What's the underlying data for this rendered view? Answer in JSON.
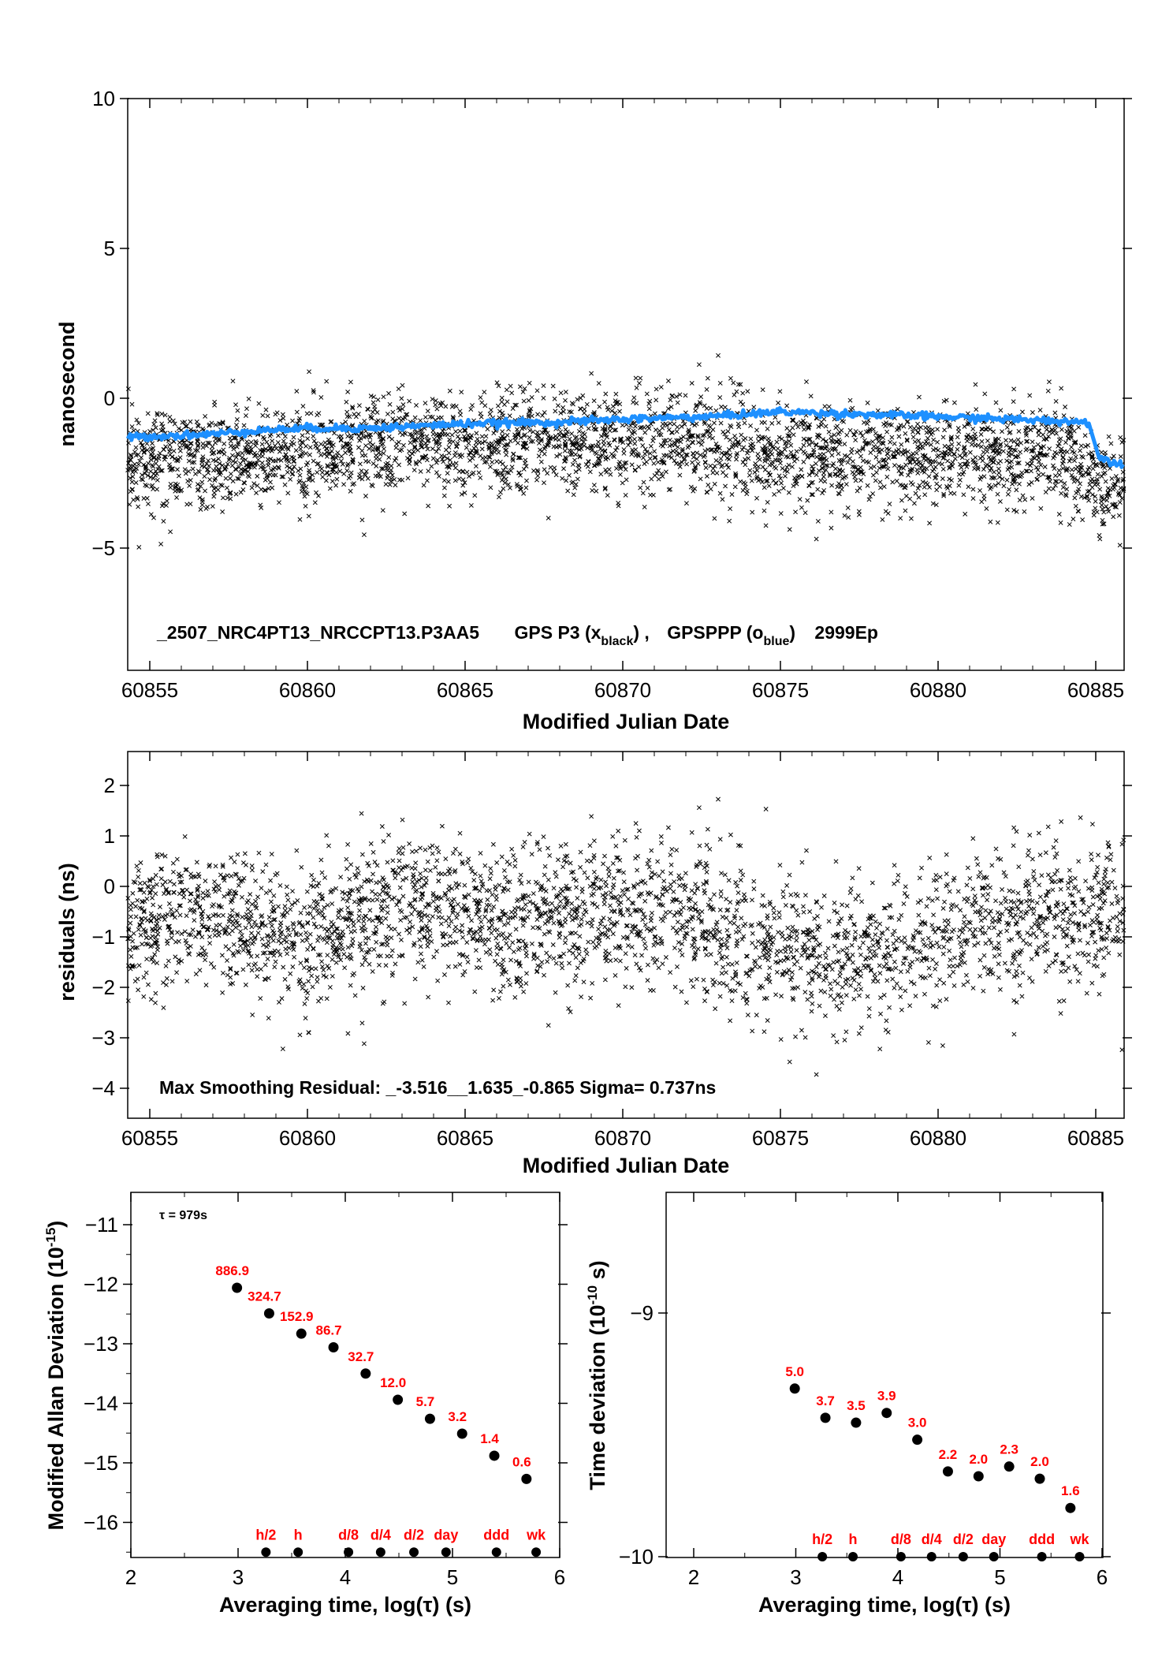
{
  "colors": {
    "x_series": "#000000",
    "o_series": "#1e90ff",
    "labels": "#ff0000"
  },
  "chart_data": [
    {
      "type": "scatter",
      "ylabel": "nanosecond",
      "xlabel": "Modified Julian Date",
      "xlim": [
        60854.3,
        60885.9
      ],
      "ylim": [
        -9,
        10
      ],
      "yticks": [
        "10",
        "5",
        "0",
        "−5"
      ],
      "xticks": [
        "60855",
        "60860",
        "60865",
        "60870",
        "60875",
        "60880",
        "60885"
      ],
      "annotation": {
        "id": "_2507_NRC4PT13_NRCCPT13.P3AA5",
        "gps": "GPS P3 (x",
        "gps_sub": "black",
        "gps_end": ") ,",
        "ppp": "GPSPPP (o",
        "ppp_sub": "blue",
        "ppp_end": ")",
        "ep": "2999Ep"
      },
      "series": [
        {
          "symbol": "x",
          "color": "#000000",
          "trend": [
            [
              60854.3,
              -2.0
            ],
            [
              60857,
              -2.1
            ],
            [
              60860,
              -1.8
            ],
            [
              60863,
              -1.6
            ],
            [
              60866,
              -1.5
            ],
            [
              60869,
              -1.4
            ],
            [
              60872,
              -1.5
            ],
            [
              60875,
              -1.8
            ],
            [
              60878,
              -2.0
            ],
            [
              60881,
              -1.9
            ],
            [
              60884,
              -1.9
            ],
            [
              60885,
              -2.7
            ],
            [
              60885.9,
              -3.2
            ]
          ],
          "spread": 0.85
        },
        {
          "symbol": "o",
          "color": "#1e90ff",
          "line": [
            [
              60854.3,
              -1.3
            ],
            [
              60857,
              -1.2
            ],
            [
              60858,
              -1.1
            ],
            [
              60860,
              -1.0
            ],
            [
              60862,
              -1.0
            ],
            [
              60865,
              -0.85
            ],
            [
              60868,
              -0.8
            ],
            [
              60870,
              -0.7
            ],
            [
              60873,
              -0.6
            ],
            [
              60875,
              -0.45
            ],
            [
              60878,
              -0.55
            ],
            [
              60881,
              -0.65
            ],
            [
              60884.8,
              -0.8
            ],
            [
              60885.1,
              -2.0
            ],
            [
              60885.9,
              -2.2
            ]
          ]
        }
      ]
    },
    {
      "type": "scatter",
      "ylabel": "residuals (ns)",
      "xlabel": "Modified Julian Date",
      "xlim": [
        60854.3,
        60885.9
      ],
      "ylim": [
        -4.5,
        2.6
      ],
      "yticks": [
        "2",
        "1",
        "0",
        "−1",
        "−2",
        "−3",
        "−4"
      ],
      "xticks": [
        "60855",
        "60860",
        "60865",
        "60870",
        "60875",
        "60880",
        "60885"
      ],
      "annotation": "Max Smoothing Residual: _-3.516__1.635_-0.865  Sigma= 0.737ns",
      "series": [
        {
          "symbol": "x",
          "color": "#000000",
          "trend": [
            [
              60854.3,
              -0.7
            ],
            [
              60857,
              -0.6
            ],
            [
              60860,
              -1.1
            ],
            [
              60863,
              -0.4
            ],
            [
              60866,
              -0.7
            ],
            [
              60869,
              -0.5
            ],
            [
              60872,
              -0.6
            ],
            [
              60875,
              -1.3
            ],
            [
              60878,
              -1.4
            ],
            [
              60881,
              -0.8
            ],
            [
              60884,
              -0.6
            ],
            [
              60885.9,
              -0.6
            ]
          ],
          "spread": 0.72
        }
      ]
    },
    {
      "type": "scatter",
      "ylabel": "Modified Allan Deviation (10",
      "ylabel_sup": "-15",
      "ylabel_end": ")",
      "xlabel": "Averaging time, log(τ) (s)",
      "xlim": [
        2,
        6
      ],
      "ylim": [
        -16.5,
        -10.5
      ],
      "yticks": [
        "−11",
        "−12",
        "−13",
        "−14",
        "−15",
        "−16"
      ],
      "xticks": [
        "2",
        "3",
        "4",
        "5",
        "6"
      ],
      "tau_note": "τ = 979s",
      "points": [
        {
          "x": 2.99,
          "y": -12.06,
          "label": "886.9"
        },
        {
          "x": 3.29,
          "y": -12.49,
          "label": "324.7"
        },
        {
          "x": 3.59,
          "y": -12.83,
          "label": "152.9"
        },
        {
          "x": 3.89,
          "y": -13.06,
          "label": "86.7"
        },
        {
          "x": 4.19,
          "y": -13.5,
          "label": "32.7"
        },
        {
          "x": 4.49,
          "y": -13.94,
          "label": "12.0"
        },
        {
          "x": 4.79,
          "y": -14.26,
          "label": "5.7"
        },
        {
          "x": 5.09,
          "y": -14.51,
          "label": "3.2"
        },
        {
          "x": 5.39,
          "y": -14.88,
          "label": "1.4"
        },
        {
          "x": 5.69,
          "y": -15.27,
          "label": "0.6"
        }
      ],
      "markers": [
        {
          "x": 3.26,
          "label": "h/2"
        },
        {
          "x": 3.56,
          "label": "h"
        },
        {
          "x": 4.03,
          "label": "d/8"
        },
        {
          "x": 4.33,
          "label": "d/4"
        },
        {
          "x": 4.64,
          "label": "d/2"
        },
        {
          "x": 4.94,
          "label": "day"
        },
        {
          "x": 5.41,
          "label": "ddd"
        },
        {
          "x": 5.78,
          "label": "wk"
        }
      ],
      "marker_y": -16.5
    },
    {
      "type": "scatter",
      "ylabel": "Time deviation (10",
      "ylabel_sup": "-10",
      "ylabel_end": " s)",
      "xlabel": "Averaging time, log(τ) (s)",
      "xlim": [
        1.5,
        6
      ],
      "ylim": [
        -10,
        -8.4
      ],
      "yticks": [
        "−9",
        "−10"
      ],
      "yticks_vals": [
        -9,
        -10
      ],
      "xticks": [
        "2",
        "3",
        "4",
        "5",
        "6"
      ],
      "points": [
        {
          "x": 2.99,
          "y": -9.31,
          "label": "5.0"
        },
        {
          "x": 3.29,
          "y": -9.43,
          "label": "3.7"
        },
        {
          "x": 3.59,
          "y": -9.45,
          "label": "3.5"
        },
        {
          "x": 3.89,
          "y": -9.41,
          "label": "3.9"
        },
        {
          "x": 4.19,
          "y": -9.52,
          "label": "3.0"
        },
        {
          "x": 4.49,
          "y": -9.65,
          "label": "2.2"
        },
        {
          "x": 4.79,
          "y": -9.67,
          "label": "2.0"
        },
        {
          "x": 5.09,
          "y": -9.63,
          "label": "2.3"
        },
        {
          "x": 5.39,
          "y": -9.68,
          "label": "2.0"
        },
        {
          "x": 5.69,
          "y": -9.8,
          "label": "1.6"
        }
      ],
      "markers": [
        {
          "x": 3.26,
          "label": "h/2"
        },
        {
          "x": 3.56,
          "label": "h"
        },
        {
          "x": 4.03,
          "label": "d/8"
        },
        {
          "x": 4.33,
          "label": "d/4"
        },
        {
          "x": 4.64,
          "label": "d/2"
        },
        {
          "x": 4.94,
          "label": "day"
        },
        {
          "x": 5.41,
          "label": "ddd"
        },
        {
          "x": 5.78,
          "label": "wk"
        }
      ],
      "marker_y": -10.0
    }
  ]
}
